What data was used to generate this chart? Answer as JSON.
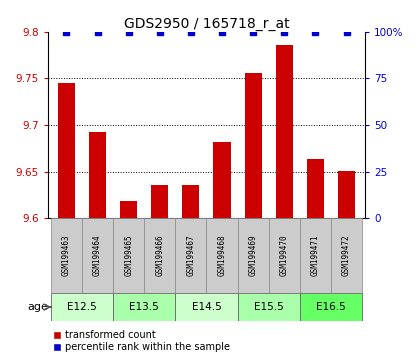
{
  "title": "GDS2950 / 165718_r_at",
  "samples": [
    "GSM199463",
    "GSM199464",
    "GSM199465",
    "GSM199466",
    "GSM199467",
    "GSM199468",
    "GSM199469",
    "GSM199470",
    "GSM199471",
    "GSM199472"
  ],
  "transformed_counts": [
    9.745,
    9.692,
    9.618,
    9.636,
    9.635,
    9.682,
    9.756,
    9.786,
    9.663,
    9.651
  ],
  "percentile_ranks": [
    100,
    100,
    100,
    100,
    100,
    100,
    100,
    100,
    100,
    100
  ],
  "ylim_left": [
    9.6,
    9.8
  ],
  "ylim_right": [
    0,
    100
  ],
  "yticks_left": [
    9.6,
    9.65,
    9.7,
    9.75,
    9.8
  ],
  "yticks_right": [
    0,
    25,
    50,
    75,
    100
  ],
  "ytick_labels_left": [
    "9.6",
    "9.65",
    "9.7",
    "9.75",
    "9.8"
  ],
  "ytick_labels_right": [
    "0",
    "25",
    "50",
    "75",
    "100%"
  ],
  "bar_color": "#cc0000",
  "percentile_color": "#0000cc",
  "background_color": "#ffffff",
  "sample_box_color": "#cccccc",
  "sample_box_edge": "#888888",
  "dotted_yvals": [
    9.65,
    9.7,
    9.75
  ],
  "group_boundaries": [
    [
      0,
      1,
      "E12.5"
    ],
    [
      2,
      3,
      "E13.5"
    ],
    [
      4,
      5,
      "E14.5"
    ],
    [
      6,
      7,
      "E15.5"
    ],
    [
      8,
      9,
      "E16.5"
    ]
  ],
  "group_colors": {
    "E12.5": "#ccffcc",
    "E13.5": "#aaffaa",
    "E14.5": "#ccffcc",
    "E15.5": "#aaffaa",
    "E16.5": "#66ff66"
  },
  "legend_bar_label": "transformed count",
  "legend_pct_label": "percentile rank within the sample",
  "age_label": "age"
}
